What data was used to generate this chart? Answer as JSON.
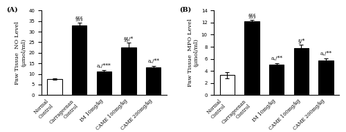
{
  "panel_A": {
    "title": "(A)",
    "ylabel": "Paw Tissue  NO Level\n(μmol/ml)",
    "ylim": [
      0,
      40
    ],
    "yticks": [
      0,
      5,
      10,
      15,
      20,
      25,
      30,
      35,
      40
    ],
    "categories": [
      "Normal\nControl",
      "Carrageenan\nControl",
      "IM 10mg/kg",
      "CAME 100mg/kg",
      "CAME 200mg/kg"
    ],
    "values": [
      7.5,
      33.0,
      11.2,
      22.5,
      13.0
    ],
    "errors": [
      0.4,
      1.2,
      0.5,
      2.2,
      0.8
    ],
    "bar_colors": [
      "white",
      "black",
      "black",
      "black",
      "black"
    ],
    "bar_edgecolors": [
      "black",
      "black",
      "black",
      "black",
      "black"
    ],
    "annotations": [
      "",
      "§§§",
      "a,/***",
      "§§/*",
      "a,/**"
    ]
  },
  "panel_B": {
    "title": "(B)",
    "ylabel": "Paw Tissue  MPO Level\n(μmol/ml)",
    "ylim": [
      0,
      14
    ],
    "yticks": [
      0,
      2,
      4,
      6,
      8,
      10,
      12,
      14
    ],
    "categories": [
      "Normal\nControl",
      "Carrageenan\nControl",
      "IM 10mg/kg",
      "CAME 100mg/kg",
      "CAME 200mg/kg"
    ],
    "values": [
      3.3,
      12.2,
      5.0,
      7.8,
      5.7
    ],
    "errors": [
      0.5,
      0.25,
      0.3,
      0.5,
      0.4
    ],
    "bar_colors": [
      "white",
      "black",
      "black",
      "black",
      "black"
    ],
    "bar_edgecolors": [
      "black",
      "black",
      "black",
      "black",
      "black"
    ],
    "annotations": [
      "",
      "§§§",
      "a,/**",
      "§/*",
      "a,/**"
    ]
  },
  "fig_width": 5.0,
  "fig_height": 1.92,
  "dpi": 100,
  "annotation_fontsize": 5.5,
  "tick_fontsize": 5,
  "label_fontsize": 6,
  "title_fontsize": 7
}
